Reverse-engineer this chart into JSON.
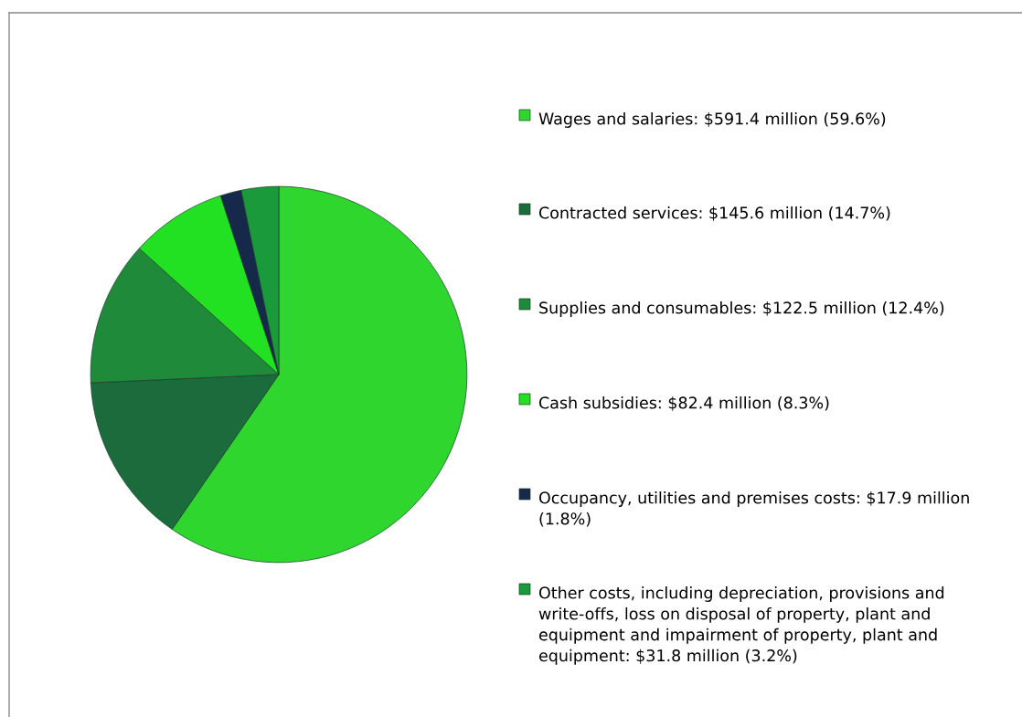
{
  "chart_data": {
    "type": "pie",
    "categories": [
      "Wages and salaries: $591.4 million (59.6%)",
      "Contracted services: $145.6 million (14.7%)",
      "Supplies and consumables: $122.5 million (12.4%)",
      "Cash subsidies: $82.4 million (8.3%)",
      "Occupancy, utilities and premises costs: $17.9 million (1.8%)",
      "Other costs, including depreciation, provisions and write-offs, loss on disposal of property, plant and equipment and impairment of property, plant and equipment: $31.8 million (3.2%)"
    ],
    "values": [
      59.6,
      14.7,
      12.4,
      8.3,
      1.8,
      3.2
    ],
    "colors": [
      "#2ed62e",
      "#1c6b3c",
      "#1f8a3a",
      "#22e022",
      "#16294a",
      "#1a9a3a"
    ],
    "legend": "right"
  }
}
